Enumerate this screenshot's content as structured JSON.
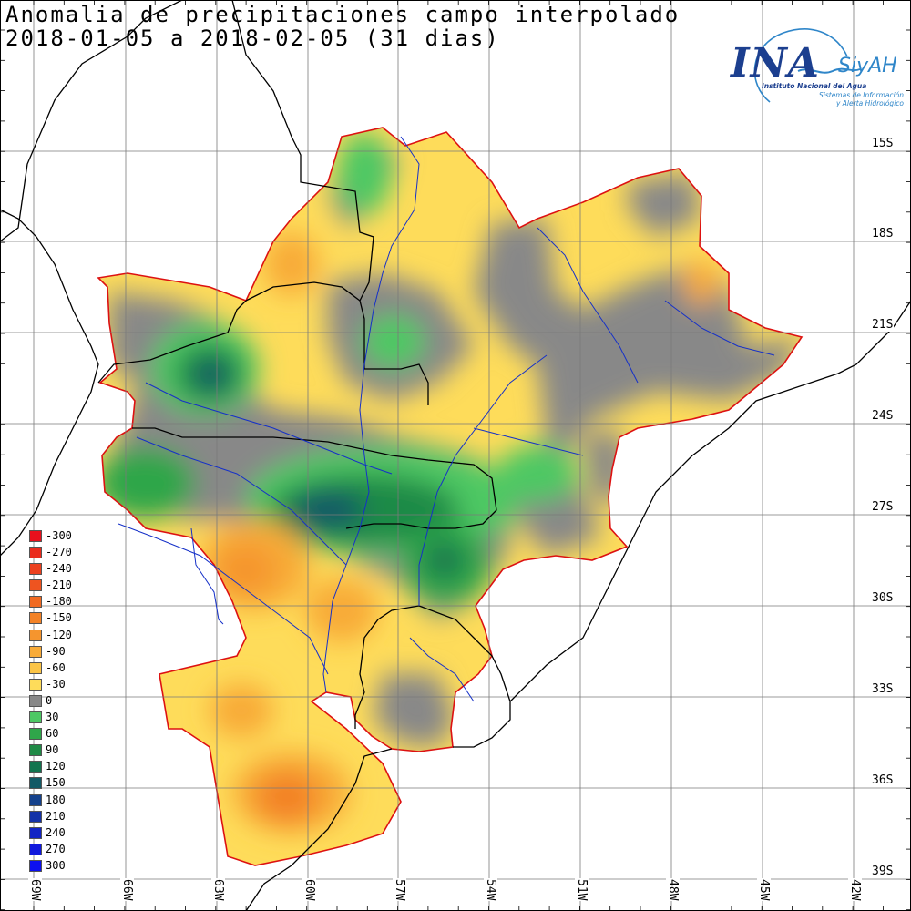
{
  "title_line1": "Anomalia de precipitaciones campo interpolado",
  "title_line2": "2018-01-05 a 2018-02-05 (31 dias)",
  "lat_labels": [
    "15S",
    "18S",
    "21S",
    "24S",
    "27S",
    "30S",
    "33S",
    "36S",
    "39S"
  ],
  "lon_labels": [
    "69W",
    "66W",
    "63W",
    "60W",
    "57W",
    "54W",
    "51W",
    "48W",
    "45W",
    "42W"
  ],
  "legend": [
    {
      "label": "-300",
      "color": "#e8101c"
    },
    {
      "label": "-270",
      "color": "#ea2a1c"
    },
    {
      "label": "-240",
      "color": "#ec401e"
    },
    {
      "label": "-210",
      "color": "#ee5420"
    },
    {
      "label": "-180",
      "color": "#f06a22"
    },
    {
      "label": "-150",
      "color": "#f38226"
    },
    {
      "label": "-120",
      "color": "#f5952e"
    },
    {
      "label": "-90",
      "color": "#f8ab38"
    },
    {
      "label": "-60",
      "color": "#fbc446"
    },
    {
      "label": "-30",
      "color": "#fedc5a"
    },
    {
      "label": "0",
      "color": "#888888"
    },
    {
      "label": "30",
      "color": "#4dc864"
    },
    {
      "label": "60",
      "color": "#2fa64a"
    },
    {
      "label": "90",
      "color": "#1f8a46"
    },
    {
      "label": "120",
      "color": "#12744f"
    },
    {
      "label": "150",
      "color": "#125a66"
    },
    {
      "label": "180",
      "color": "#14418c"
    },
    {
      "label": "210",
      "color": "#1432a8"
    },
    {
      "label": "240",
      "color": "#1224c4"
    },
    {
      "label": "270",
      "color": "#1018dc"
    },
    {
      "label": "300",
      "color": "#0c10f0"
    }
  ],
  "logo": {
    "name": "INA",
    "product": "SiyAH",
    "subtitle1": "Instituto Nacional del Agua",
    "subtitle2": "Sistemas de Información",
    "subtitle3": "y Alerta Hidrológico"
  }
}
